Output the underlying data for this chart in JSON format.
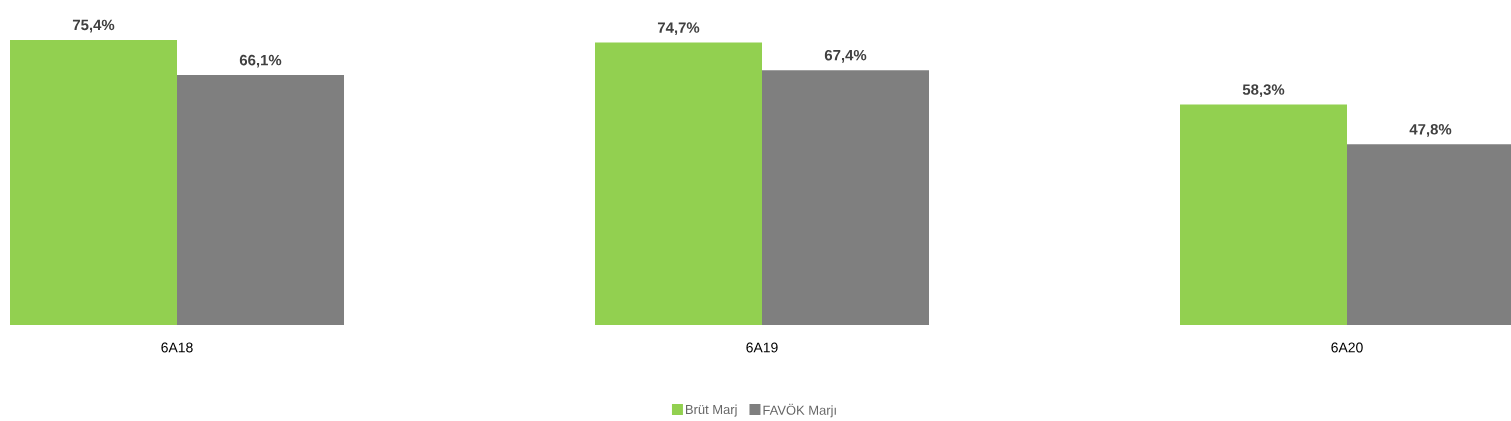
{
  "chart_data": {
    "type": "bar",
    "categories": [
      "6A18",
      "6A19",
      "6A20"
    ],
    "series": [
      {
        "name": "Brüt Marj",
        "color": "#92d050",
        "values": [
          75.4,
          74.7,
          58.3
        ],
        "value_labels": [
          "75,4%",
          "74,7%",
          "58,3%"
        ]
      },
      {
        "name": "FAVÖK Marjı",
        "color": "#7f7f7f",
        "values": [
          66.1,
          67.4,
          47.8
        ],
        "value_labels": [
          "66,1%",
          "67,4%",
          "47,8%"
        ]
      }
    ],
    "legend": "bottom",
    "grid": false
  }
}
